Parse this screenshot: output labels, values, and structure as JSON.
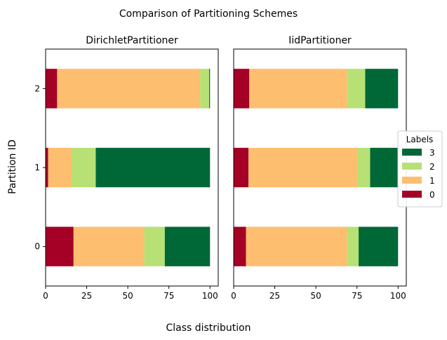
{
  "chart_data": {
    "type": "bar",
    "orientation": "horizontal",
    "stacked": true,
    "title": "Comparison of Partitioning Schemes",
    "xlabel": "Class distribution",
    "ylabel": "Partition ID",
    "xlim": [
      0,
      105
    ],
    "xticks": [
      0,
      25,
      50,
      75,
      100
    ],
    "grid": false,
    "legend": {
      "title": "Labels",
      "placement": "right",
      "entries": [
        {
          "label": "3",
          "color": "#006837"
        },
        {
          "label": "2",
          "color": "#b7e075"
        },
        {
          "label": "1",
          "color": "#fdbf6f"
        },
        {
          "label": "0",
          "color": "#a50026"
        }
      ]
    },
    "class_colors": {
      "0": "#a50026",
      "1": "#fdbf6f",
      "2": "#b7e075",
      "3": "#006837"
    },
    "subplots": [
      {
        "title": "DirichletPartitioner",
        "categories": [
          "0",
          "1",
          "2"
        ],
        "series": [
          {
            "name": "0",
            "values": [
              17,
              1.5,
              7
            ]
          },
          {
            "name": "1",
            "values": [
              43,
              14.5,
              87
            ]
          },
          {
            "name": "2",
            "values": [
              12.5,
              14.5,
              5.5
            ]
          },
          {
            "name": "3",
            "values": [
              27.5,
              69.5,
              0.5
            ]
          }
        ]
      },
      {
        "title": "IidPartitioner",
        "categories": [
          "0",
          "1",
          "2"
        ],
        "series": [
          {
            "name": "0",
            "values": [
              7.5,
              9,
              9.5
            ]
          },
          {
            "name": "1",
            "values": [
              61.5,
              66.5,
              59.5
            ]
          },
          {
            "name": "2",
            "values": [
              7,
              7.5,
              11
            ]
          },
          {
            "name": "3",
            "values": [
              24,
              17,
              20
            ]
          }
        ]
      }
    ]
  }
}
